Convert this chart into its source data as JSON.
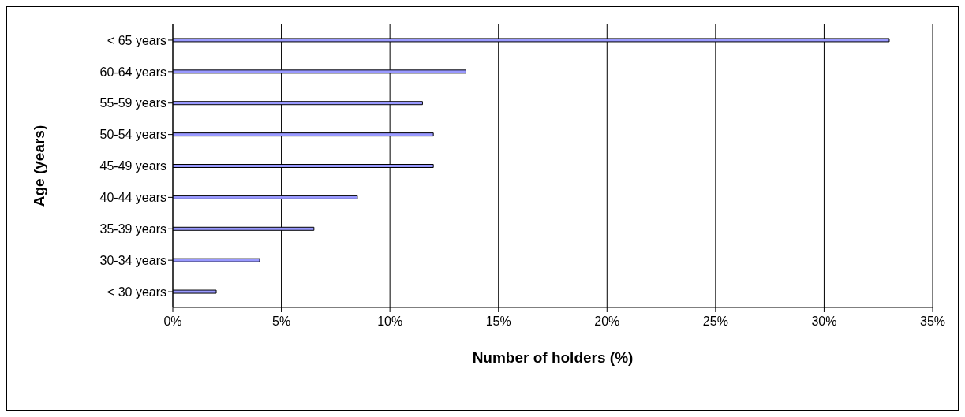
{
  "chart_data": {
    "type": "bar",
    "orientation": "horizontal",
    "xlabel": "Number of holders (%)",
    "ylabel": "Age (years)",
    "categories": [
      "< 65 years",
      "60-64 years",
      "55-59 years",
      "50-54 years",
      "45-49 years",
      "40-44 years",
      "35-39 years",
      "30-34 years",
      "< 30 years"
    ],
    "values": [
      33,
      13.5,
      11.5,
      12,
      12,
      8.5,
      6.5,
      4,
      2
    ],
    "color": "#9999ff",
    "xlim": [
      0,
      35
    ],
    "xticks": [
      {
        "value": 0,
        "label": "0%"
      },
      {
        "value": 5,
        "label": "5%"
      },
      {
        "value": 10,
        "label": "10%"
      },
      {
        "value": 15,
        "label": "15%"
      },
      {
        "value": 20,
        "label": "20%"
      },
      {
        "value": 25,
        "label": "25%"
      },
      {
        "value": 30,
        "label": "30%"
      },
      {
        "value": 35,
        "label": "35%"
      }
    ],
    "grid": "x",
    "legend": false
  }
}
